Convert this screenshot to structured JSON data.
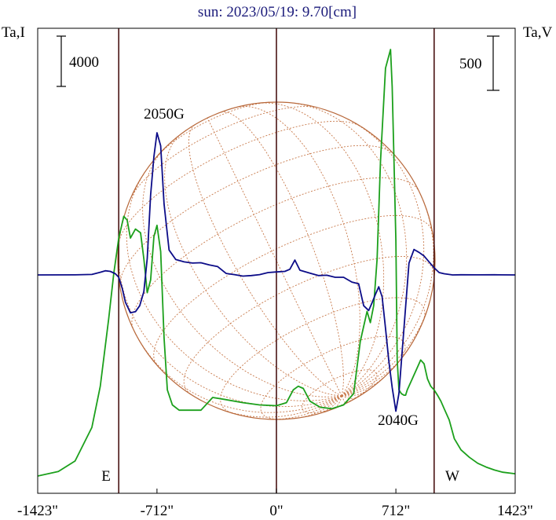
{
  "chart_data": {
    "type": "line",
    "title": "sun: 2023/05/19: 9.70[cm]",
    "ylabel_left": "Ta,I",
    "ylabel_right": "Ta,V",
    "scale_bar_left": "4000",
    "scale_bar_right": "500",
    "xlim": [
      -1423,
      1423
    ],
    "x_ticks": [
      {
        "value": -1423,
        "label": "-1423\""
      },
      {
        "value": -712,
        "label": "-712\""
      },
      {
        "value": 0,
        "label": "0\""
      },
      {
        "value": 712,
        "label": "712\""
      },
      {
        "value": 1423,
        "label": "1423\""
      }
    ],
    "vertical_lines": [
      -940,
      0,
      940
    ],
    "labels": {
      "east": "E",
      "west": "W"
    },
    "annotations": [
      {
        "text": "2050G",
        "x": -810
      },
      {
        "text": "2040G",
        "x": 710
      }
    ],
    "colors": {
      "stokes_i": "#1ca01c",
      "stokes_v": "#0c0c88",
      "disk": "#b8683a",
      "frame": "#000000",
      "title": "#1a1a7a"
    },
    "series": [
      {
        "name": "I",
        "color": "#1ca01c",
        "x": [
          -1423,
          -1300,
          -1200,
          -1100,
          -1050,
          -1000,
          -970,
          -940,
          -910,
          -890,
          -870,
          -840,
          -810,
          -790,
          -770,
          -750,
          -730,
          -712,
          -690,
          -670,
          -650,
          -620,
          -580,
          -520,
          -450,
          -380,
          -300,
          -200,
          -100,
          0,
          60,
          100,
          130,
          160,
          200,
          260,
          330,
          400,
          460,
          500,
          540,
          560,
          580,
          600,
          620,
          650,
          680,
          690,
          700,
          712,
          720,
          730,
          745,
          760,
          770,
          780,
          800,
          830,
          860,
          880,
          900,
          920,
          940,
          960,
          980,
          1000,
          1030,
          1060,
          1100,
          1150,
          1200,
          1250,
          1300,
          1350,
          1423
        ],
        "y": [
          0,
          6,
          20,
          65,
          120,
          210,
          270,
          318,
          347,
          342,
          318,
          330,
          325,
          290,
          245,
          262,
          320,
          335,
          300,
          185,
          115,
          95,
          88,
          88,
          88,
          105,
          102,
          98,
          95,
          94,
          98,
          115,
          120,
          117,
          100,
          92,
          90,
          95,
          110,
          180,
          220,
          205,
          228,
          290,
          420,
          545,
          570,
          520,
          430,
          315,
          155,
          115,
          110,
          108,
          108,
          115,
          125,
          140,
          155,
          150,
          130,
          120,
          115,
          108,
          100,
          90,
          75,
          50,
          35,
          25,
          17,
          12,
          8,
          5,
          3
        ]
      },
      {
        "name": "V",
        "color": "#0c0c88",
        "x": [
          -1423,
          -1200,
          -1100,
          -1050,
          -1020,
          -990,
          -960,
          -940,
          -920,
          -900,
          -870,
          -840,
          -815,
          -790,
          -770,
          -750,
          -730,
          -712,
          -690,
          -670,
          -640,
          -600,
          -550,
          -500,
          -450,
          -400,
          -350,
          -300,
          -250,
          -200,
          -150,
          -100,
          -50,
          0,
          50,
          80,
          110,
          140,
          170,
          200,
          250,
          300,
          350,
          400,
          450,
          490,
          520,
          550,
          570,
          590,
          610,
          630,
          650,
          670,
          690,
          712,
          730,
          760,
          790,
          820,
          850,
          880,
          910,
          940,
          970,
          1000,
          1050,
          1100,
          1200,
          1300,
          1423
        ],
        "y": [
          0,
          1,
          8,
          45,
          70,
          60,
          20,
          -40,
          -220,
          -460,
          -640,
          -620,
          -520,
          -280,
          280,
          1350,
          2000,
          2400,
          2180,
          1200,
          420,
          260,
          220,
          200,
          205,
          170,
          140,
          25,
          5,
          -20,
          -10,
          5,
          40,
          50,
          60,
          95,
          250,
          80,
          55,
          30,
          -10,
          -5,
          -40,
          -40,
          -120,
          -150,
          -520,
          -600,
          -470,
          -330,
          -200,
          -370,
          -900,
          -1450,
          -1900,
          -2300,
          -2000,
          -900,
          200,
          430,
          380,
          320,
          220,
          120,
          40,
          20,
          0,
          2,
          1,
          3,
          0
        ]
      }
    ]
  }
}
